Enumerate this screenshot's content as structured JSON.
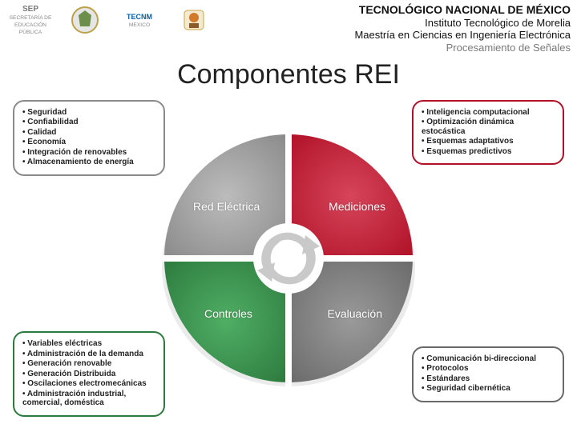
{
  "header": {
    "line1": "TECNOLÓGICO NACIONAL DE MÉXICO",
    "line2": "Instituto Tecnológico de Morelia",
    "line3": "Maestría en Ciencias en Ingeniería Electrónica",
    "line4": "Procesamiento de Señales",
    "logos": {
      "sep": "SEP",
      "sep_sub": "SECRETARÍA DE EDUCACIÓN PÚBLICA",
      "tecnm": "TECNM",
      "tecnm_sub": "MEXICO"
    }
  },
  "title": "Componentes REI",
  "pie": {
    "type": "pie-quadrant",
    "background_color": "#ffffff",
    "center_ring_color": "#ffffff",
    "center_icon_color": "#c9c9c9",
    "gap_color": "#ffffff",
    "label_fontsize": 14,
    "label_color": "#ffffff",
    "segments": [
      {
        "key": "tl",
        "label": "Red Eléctrica",
        "color": "#8a8a8a"
      },
      {
        "key": "tr",
        "label": "Mediciones",
        "color": "#b01127"
      },
      {
        "key": "bl",
        "label": "Controles",
        "color": "#2d7a3e"
      },
      {
        "key": "br",
        "label": "Evaluación",
        "color": "#6a6a6a"
      }
    ]
  },
  "boxes": {
    "tl": {
      "border_color": "#8a8a8a",
      "items": [
        "Seguridad",
        "Confiabilidad",
        "Calidad",
        "Economía",
        "Integración de renovables",
        "Almacenamiento de energía"
      ]
    },
    "tr": {
      "border_color": "#b01127",
      "items": [
        "Inteligencia computacional",
        "Optimización dinámica estocástica",
        "Esquemas adaptativos",
        "Esquemas predictivos"
      ]
    },
    "bl": {
      "border_color": "#2d7a3e",
      "items": [
        "Variables eléctricas",
        "Administración de la demanda",
        "Generación renovable",
        "Generación Distribuida",
        "Oscilaciones electromecánicas",
        "Administración industrial, comercial, doméstica"
      ]
    },
    "br": {
      "border_color": "#6a6a6a",
      "items": [
        "Comunicación bi-direccional",
        "Protocolos",
        "Estándares",
        "Seguridad cibernética"
      ]
    }
  }
}
